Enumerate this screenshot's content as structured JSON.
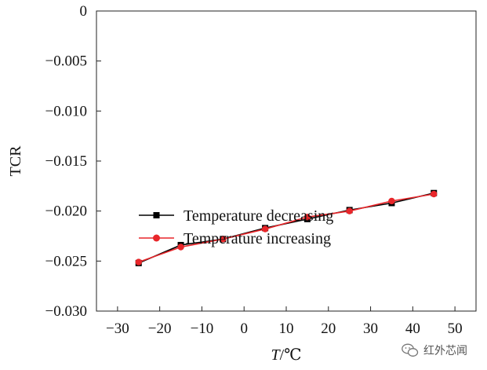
{
  "chart_data": {
    "type": "line",
    "title": "",
    "xlabel_italic": "T",
    "xlabel_unit": "/℃",
    "ylabel": "TCR",
    "xlim": [
      -35,
      55
    ],
    "ylim": [
      -0.03,
      0
    ],
    "x_ticks": [
      -30,
      -20,
      -10,
      0,
      10,
      20,
      30,
      40,
      50
    ],
    "x_tick_labels": [
      "−30",
      "−20",
      "−10",
      "0",
      "10",
      "20",
      "30",
      "40",
      "50"
    ],
    "y_ticks": [
      -0.03,
      -0.025,
      -0.02,
      -0.015,
      -0.01,
      -0.005,
      0
    ],
    "y_tick_labels": [
      "−0.030",
      "−0.025",
      "−0.020",
      "−0.015",
      "−0.010",
      "−0.005",
      "0"
    ],
    "legend_position": "center-left",
    "series": [
      {
        "name": "Temperature decreasing",
        "color": "#000000",
        "marker": "square",
        "x": [
          -25,
          -15,
          -5,
          5,
          15,
          25,
          35,
          45
        ],
        "y": [
          -0.0252,
          -0.0234,
          -0.0228,
          -0.0217,
          -0.0208,
          -0.0199,
          -0.0192,
          -0.0182
        ]
      },
      {
        "name": "Temperature increasing",
        "color": "#e8262a",
        "marker": "circle",
        "x": [
          -25,
          -15,
          -5,
          5,
          15,
          25,
          35,
          45
        ],
        "y": [
          -0.0251,
          -0.0236,
          -0.0228,
          -0.0218,
          -0.0206,
          -0.02,
          -0.019,
          -0.0183
        ]
      }
    ]
  },
  "watermark": {
    "icon": "wechat-icon",
    "text": "红外芯闻"
  }
}
